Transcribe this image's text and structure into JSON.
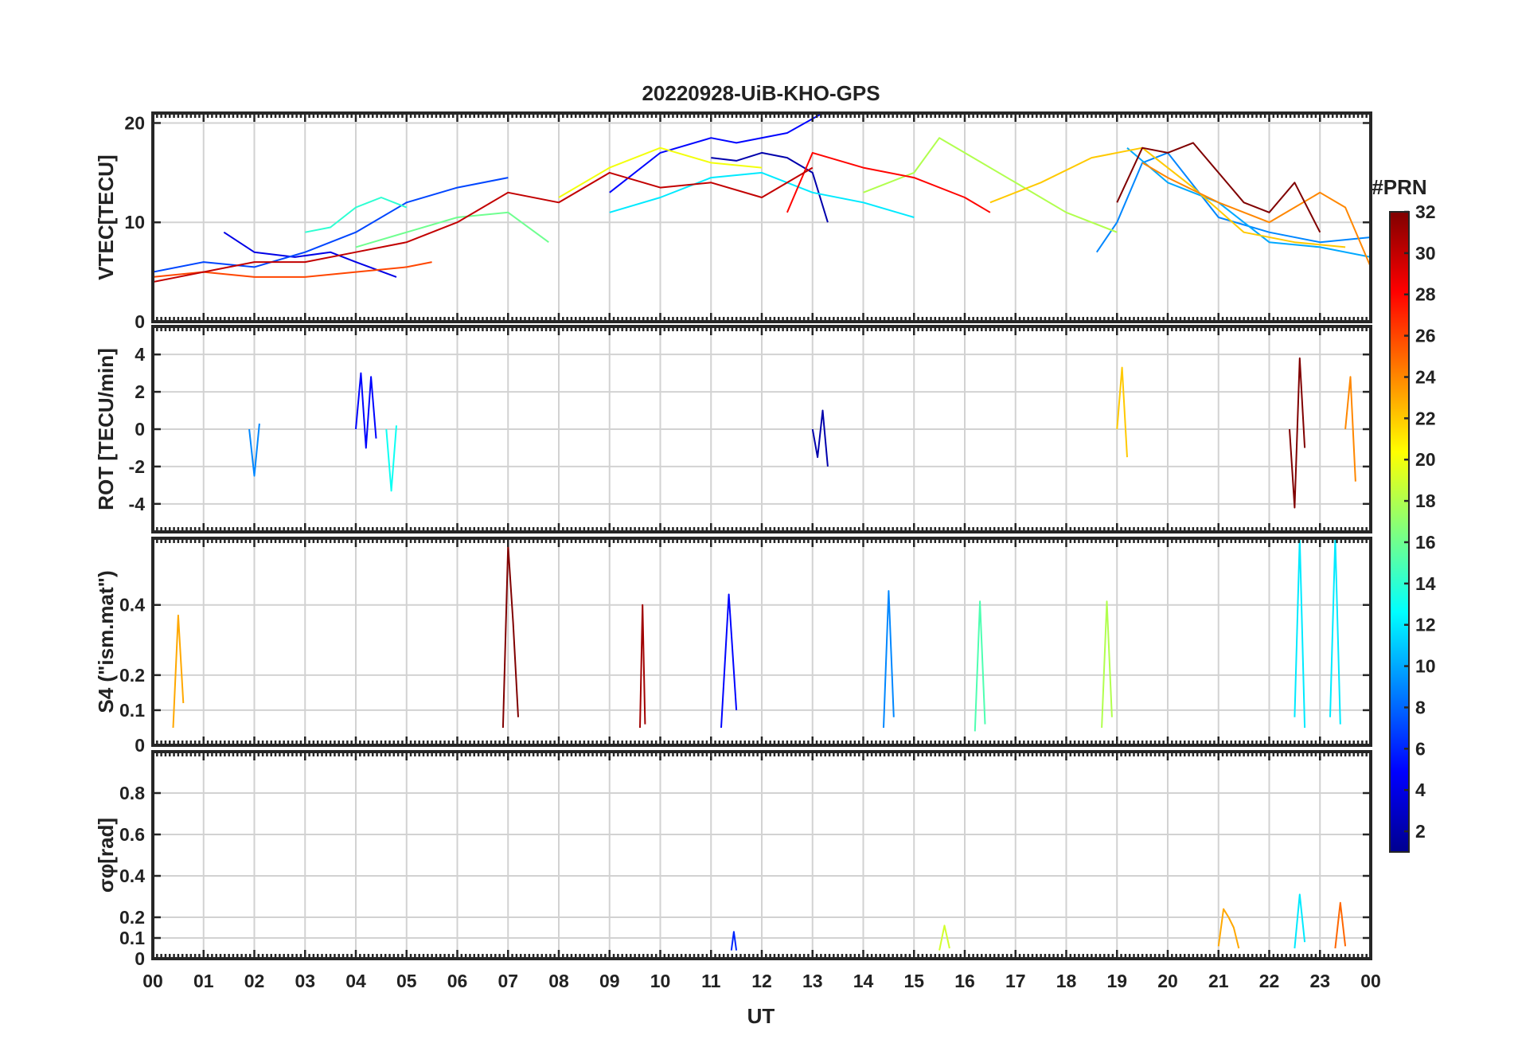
{
  "chart_data": {
    "type": "line",
    "title": "20220928-UiB-KHO-GPS",
    "xlabel": "UT",
    "x_tick_labels": [
      "00",
      "01",
      "02",
      "03",
      "04",
      "05",
      "06",
      "07",
      "08",
      "09",
      "10",
      "11",
      "12",
      "13",
      "14",
      "15",
      "16",
      "17",
      "18",
      "19",
      "20",
      "21",
      "22",
      "23",
      "00"
    ],
    "x_range_hours": [
      0,
      24
    ],
    "colorbar": {
      "label": "#PRN",
      "range": [
        1,
        32
      ],
      "tick_labels": [
        "32",
        "30",
        "28",
        "26",
        "24",
        "22",
        "20",
        "18",
        "16",
        "14",
        "12",
        "10",
        "8",
        "6",
        "4",
        "2"
      ],
      "colormap": [
        "#00008f",
        "#0000ff",
        "#007fff",
        "#00ffff",
        "#7fff7f",
        "#ffff00",
        "#ff7f00",
        "#ff0000",
        "#800000"
      ]
    },
    "panels": [
      {
        "id": "vtec",
        "ylabel": "VTEC[TECU]",
        "ylim": [
          0,
          21
        ],
        "yticks": [
          0,
          10,
          20
        ],
        "ytick_labels": [
          "0",
          "10",
          "20"
        ],
        "series": [
          {
            "name": "PRN 2",
            "x": [
              11.0,
              11.5,
              12.0,
              12.5,
              13.0,
              13.3
            ],
            "y": [
              16.5,
              16.2,
              17.0,
              16.5,
              15.0,
              10.0
            ]
          },
          {
            "name": "PRN 4",
            "x": [
              1.4,
              2.0,
              2.8,
              3.5,
              4.0,
              4.8
            ],
            "y": [
              9.0,
              7.0,
              6.5,
              7.0,
              6.0,
              4.5
            ]
          },
          {
            "name": "PRN 5",
            "x": [
              9.0,
              10.0,
              11.0,
              11.5,
              12.5,
              13.2
            ],
            "y": [
              13.0,
              17.0,
              18.5,
              18.0,
              19.0,
              21.0
            ]
          },
          {
            "name": "PRN 7",
            "x": [
              0.0,
              1.0,
              2.0,
              3.0,
              4.0,
              5.0,
              6.0,
              7.0
            ],
            "y": [
              5.0,
              6.0,
              5.5,
              7.0,
              9.0,
              12.0,
              13.5,
              14.5
            ]
          },
          {
            "name": "PRN 9",
            "x": [
              18.6,
              19.0,
              19.5,
              20.0,
              21.0,
              22.0,
              23.0,
              24.0
            ],
            "y": [
              7.0,
              10.0,
              16.0,
              17.0,
              10.5,
              9.0,
              8.0,
              8.5
            ]
          },
          {
            "name": "PRN 10",
            "x": [
              19.2,
              20.0,
              21.0,
              22.0,
              23.0,
              24.0
            ],
            "y": [
              17.5,
              14.0,
              12.0,
              8.0,
              7.5,
              6.5
            ]
          },
          {
            "name": "PRN 12",
            "x": [
              9.0,
              10.0,
              11.0,
              12.0,
              13.0,
              14.0,
              15.0
            ],
            "y": [
              11.0,
              12.5,
              14.5,
              15.0,
              13.0,
              12.0,
              10.5
            ]
          },
          {
            "name": "PRN 14",
            "x": [
              3.0,
              3.5,
              4.0,
              4.5,
              5.0
            ],
            "y": [
              9.0,
              9.5,
              11.5,
              12.5,
              11.5
            ]
          },
          {
            "name": "PRN 16",
            "x": [
              4.0,
              5.0,
              6.0,
              7.0,
              7.8
            ],
            "y": [
              7.5,
              9.0,
              10.5,
              11.0,
              8.0
            ]
          },
          {
            "name": "PRN 18",
            "x": [
              14.0,
              15.0,
              15.5,
              16.0,
              17.0,
              18.0,
              19.0
            ],
            "y": [
              13.0,
              15.0,
              18.5,
              17.0,
              14.0,
              11.0,
              9.0
            ]
          },
          {
            "name": "PRN 20",
            "x": [
              8.0,
              9.0,
              10.0,
              11.0,
              12.0
            ],
            "y": [
              12.5,
              15.5,
              17.5,
              16.0,
              15.5
            ]
          },
          {
            "name": "PRN 22",
            "x": [
              16.5,
              17.5,
              18.5,
              19.5,
              20.5,
              21.5,
              22.5,
              23.5
            ],
            "y": [
              12.0,
              14.0,
              16.5,
              17.5,
              13.5,
              9.0,
              8.0,
              7.5
            ]
          },
          {
            "name": "PRN 24",
            "x": [
              19.5,
              20.0,
              21.0,
              22.0,
              23.0,
              23.5,
              24.0
            ],
            "y": [
              16.0,
              14.5,
              12.0,
              10.0,
              13.0,
              11.5,
              5.5
            ]
          },
          {
            "name": "PRN 26",
            "x": [
              0.0,
              1.0,
              2.0,
              3.0,
              4.0,
              5.0,
              5.5
            ],
            "y": [
              4.5,
              5.0,
              4.5,
              4.5,
              5.0,
              5.5,
              6.0
            ]
          },
          {
            "name": "PRN 28",
            "x": [
              12.5,
              13.0,
              14.0,
              15.0,
              16.0,
              16.5
            ],
            "y": [
              11.0,
              17.0,
              15.5,
              14.5,
              12.5,
              11.0
            ]
          },
          {
            "name": "PRN 30",
            "x": [
              0.0,
              1.0,
              2.0,
              3.0,
              4.0,
              5.0,
              6.0,
              7.0,
              8.0,
              9.0,
              10.0,
              11.0,
              12.0,
              13.0
            ],
            "y": [
              4.0,
              5.0,
              6.0,
              6.0,
              7.0,
              8.0,
              10.0,
              13.0,
              12.0,
              15.0,
              13.5,
              14.0,
              12.5,
              15.5
            ]
          },
          {
            "name": "PRN 32",
            "x": [
              19.0,
              19.5,
              20.0,
              20.5,
              21.0,
              21.5,
              22.0,
              22.5,
              23.0
            ],
            "y": [
              12.0,
              17.5,
              17.0,
              18.0,
              15.0,
              12.0,
              11.0,
              14.0,
              9.0
            ]
          }
        ]
      },
      {
        "id": "rot",
        "ylabel": "ROT [TECU/min]",
        "ylim": [
          -5.5,
          5.5
        ],
        "yticks": [
          -4,
          -2,
          0,
          2,
          4
        ],
        "ytick_labels": [
          "-4",
          "-2",
          "0",
          "2",
          "4"
        ],
        "series": [
          {
            "name": "PRN 2",
            "x": [
              13.0,
              13.1,
              13.2,
              13.3
            ],
            "y": [
              0.0,
              -1.5,
              1.0,
              -2.0
            ]
          },
          {
            "name": "PRN 5",
            "x": [
              4.0,
              4.1,
              4.2,
              4.3,
              4.4
            ],
            "y": [
              0.0,
              3.0,
              -1.0,
              2.8,
              -0.5
            ]
          },
          {
            "name": "PRN 9",
            "x": [
              1.9,
              2.0,
              2.1
            ],
            "y": [
              0.0,
              -2.5,
              0.3
            ]
          },
          {
            "name": "PRN 13",
            "x": [
              4.6,
              4.7,
              4.8
            ],
            "y": [
              0.0,
              -3.3,
              0.2
            ]
          },
          {
            "name": "PRN 22",
            "x": [
              19.0,
              19.1,
              19.2
            ],
            "y": [
              0.0,
              3.3,
              -1.5
            ]
          },
          {
            "name": "PRN 24",
            "x": [
              23.5,
              23.6,
              23.7
            ],
            "y": [
              0.0,
              2.8,
              -2.8
            ]
          },
          {
            "name": "PRN 32",
            "x": [
              22.4,
              22.5,
              22.6,
              22.7
            ],
            "y": [
              0.0,
              -4.2,
              3.8,
              -1.0
            ]
          }
        ]
      },
      {
        "id": "s4",
        "ylabel": "S4 (\"ism.mat\")",
        "ylim": [
          0,
          0.59
        ],
        "yticks": [
          0,
          0.1,
          0.2,
          0.4
        ],
        "ytick_labels": [
          "0",
          "0.1",
          "0.2",
          "0.4"
        ],
        "series": [
          {
            "name": "PRN 32",
            "x": [
              6.9,
              7.0,
              7.1,
              7.2
            ],
            "y": [
              0.05,
              0.57,
              0.35,
              0.08
            ]
          },
          {
            "name": "PRN 31",
            "x": [
              9.6,
              9.65,
              9.7
            ],
            "y": [
              0.05,
              0.4,
              0.06
            ]
          },
          {
            "name": "PRN 5",
            "x": [
              11.2,
              11.35,
              11.5
            ],
            "y": [
              0.05,
              0.43,
              0.1
            ]
          },
          {
            "name": "PRN 9",
            "x": [
              14.4,
              14.5,
              14.6
            ],
            "y": [
              0.05,
              0.44,
              0.08
            ]
          },
          {
            "name": "PRN 23",
            "x": [
              0.4,
              0.5,
              0.6
            ],
            "y": [
              0.05,
              0.37,
              0.12
            ]
          },
          {
            "name": "PRN 12",
            "x": [
              22.5,
              22.6,
              22.7
            ],
            "y": [
              0.08,
              0.59,
              0.05
            ]
          },
          {
            "name": "PRN 12",
            "x": [
              23.2,
              23.3,
              23.4
            ],
            "y": [
              0.08,
              0.59,
              0.06
            ]
          },
          {
            "name": "PRN 18",
            "x": [
              18.7,
              18.8,
              18.9
            ],
            "y": [
              0.05,
              0.41,
              0.08
            ]
          },
          {
            "name": "PRN 15",
            "x": [
              16.2,
              16.3,
              16.4
            ],
            "y": [
              0.04,
              0.41,
              0.06
            ]
          }
        ]
      },
      {
        "id": "sigma_phi",
        "ylabel": "σφ[rad]",
        "ylim": [
          0,
          1.0
        ],
        "yticks": [
          0,
          0.1,
          0.2,
          0.4,
          0.6,
          0.8
        ],
        "ytick_labels": [
          "0",
          "0.1",
          "0.2",
          "0.4",
          "0.6",
          "0.8"
        ],
        "series": [
          {
            "name": "PRN 23",
            "x": [
              21.0,
              21.1,
              21.2,
              21.3,
              21.4
            ],
            "y": [
              0.06,
              0.24,
              0.2,
              0.15,
              0.05
            ]
          },
          {
            "name": "PRN 12",
            "x": [
              22.5,
              22.6,
              22.7
            ],
            "y": [
              0.05,
              0.31,
              0.08
            ]
          },
          {
            "name": "PRN 25",
            "x": [
              23.3,
              23.4,
              23.5
            ],
            "y": [
              0.05,
              0.27,
              0.06
            ]
          },
          {
            "name": "PRN 19",
            "x": [
              15.5,
              15.6,
              15.7
            ],
            "y": [
              0.04,
              0.16,
              0.05
            ]
          },
          {
            "name": "PRN 6",
            "x": [
              11.4,
              11.45,
              11.5
            ],
            "y": [
              0.04,
              0.13,
              0.04
            ]
          }
        ]
      }
    ]
  }
}
